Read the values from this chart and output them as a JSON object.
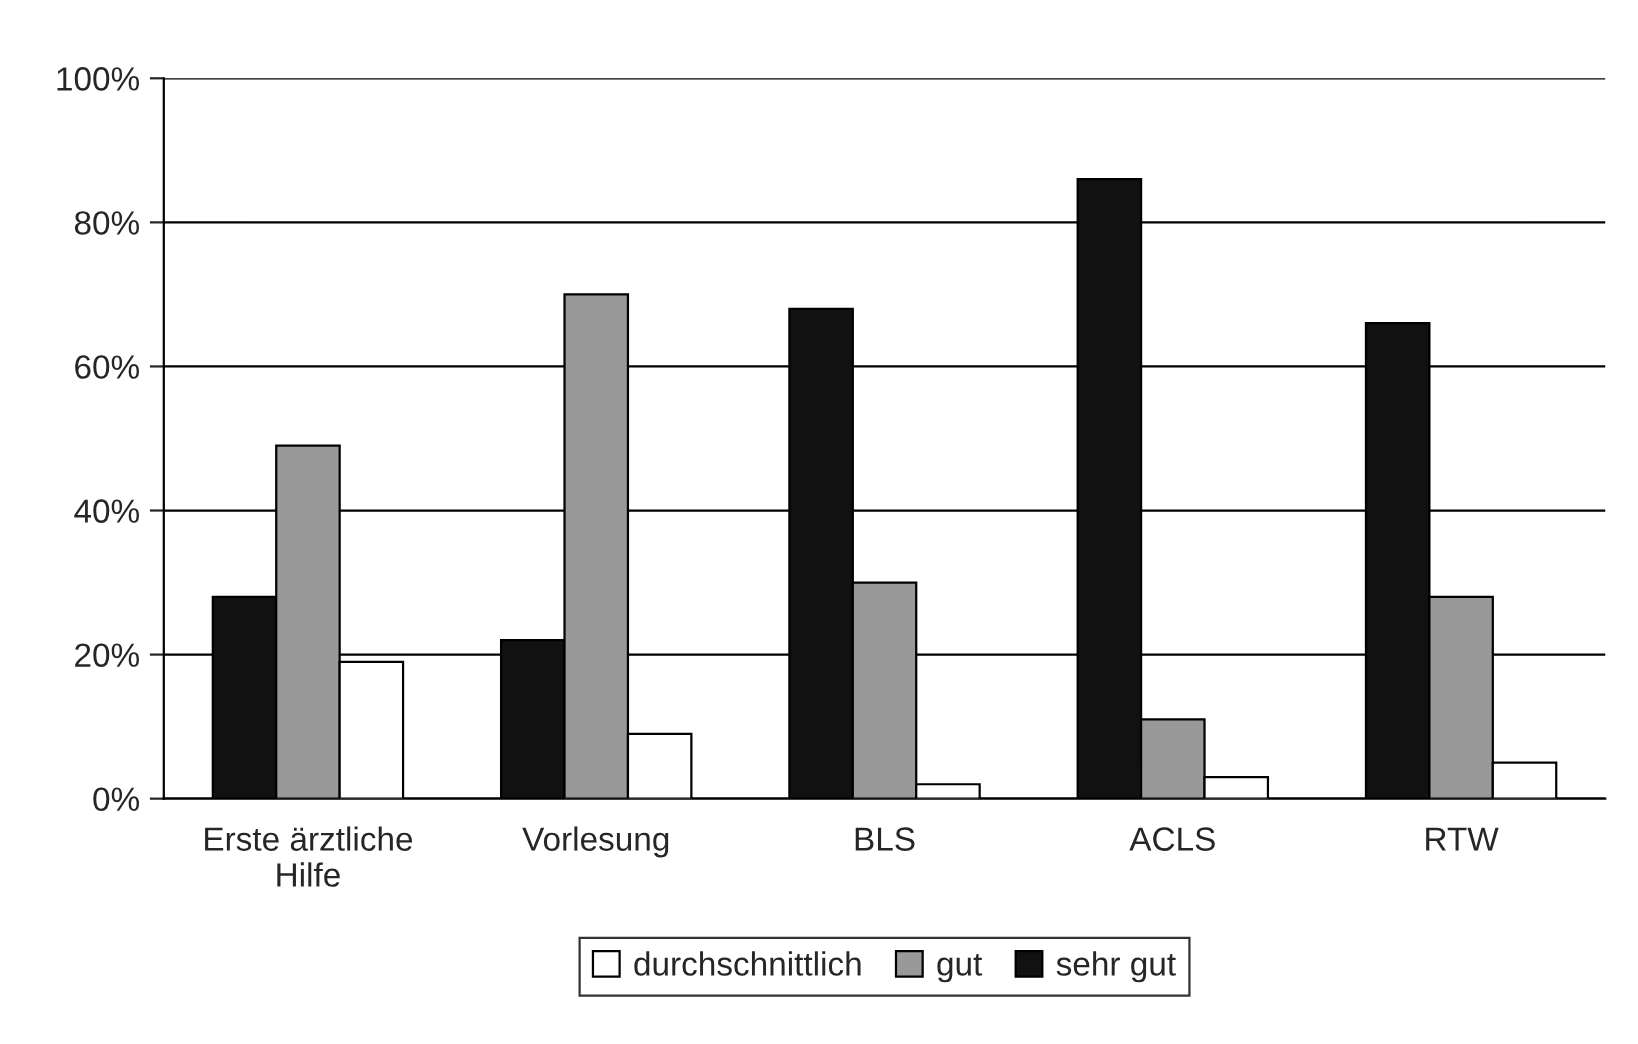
{
  "chart_data": {
    "type": "bar",
    "categories": [
      "Erste ärztliche\nHilfe",
      "Vorlesung",
      "BLS",
      "ACLS",
      "RTW"
    ],
    "series": [
      {
        "name": "sehr gut",
        "color": "#111111",
        "values": [
          28,
          22,
          68,
          86,
          66
        ]
      },
      {
        "name": "gut",
        "color": "#999999",
        "values": [
          49,
          70,
          30,
          11,
          28
        ]
      },
      {
        "name": "durchschnittlich",
        "color": "#ffffff",
        "values": [
          19,
          9,
          2,
          3,
          5
        ]
      }
    ],
    "ylim": [
      0,
      100
    ],
    "yticks": [
      {
        "value": 0,
        "label": "0%"
      },
      {
        "value": 20,
        "label": "20%"
      },
      {
        "value": 40,
        "label": "40%"
      },
      {
        "value": 60,
        "label": "60%"
      },
      {
        "value": 80,
        "label": "80%"
      },
      {
        "value": 100,
        "label": "100%"
      }
    ],
    "grid": "y",
    "legend": "bottom"
  }
}
